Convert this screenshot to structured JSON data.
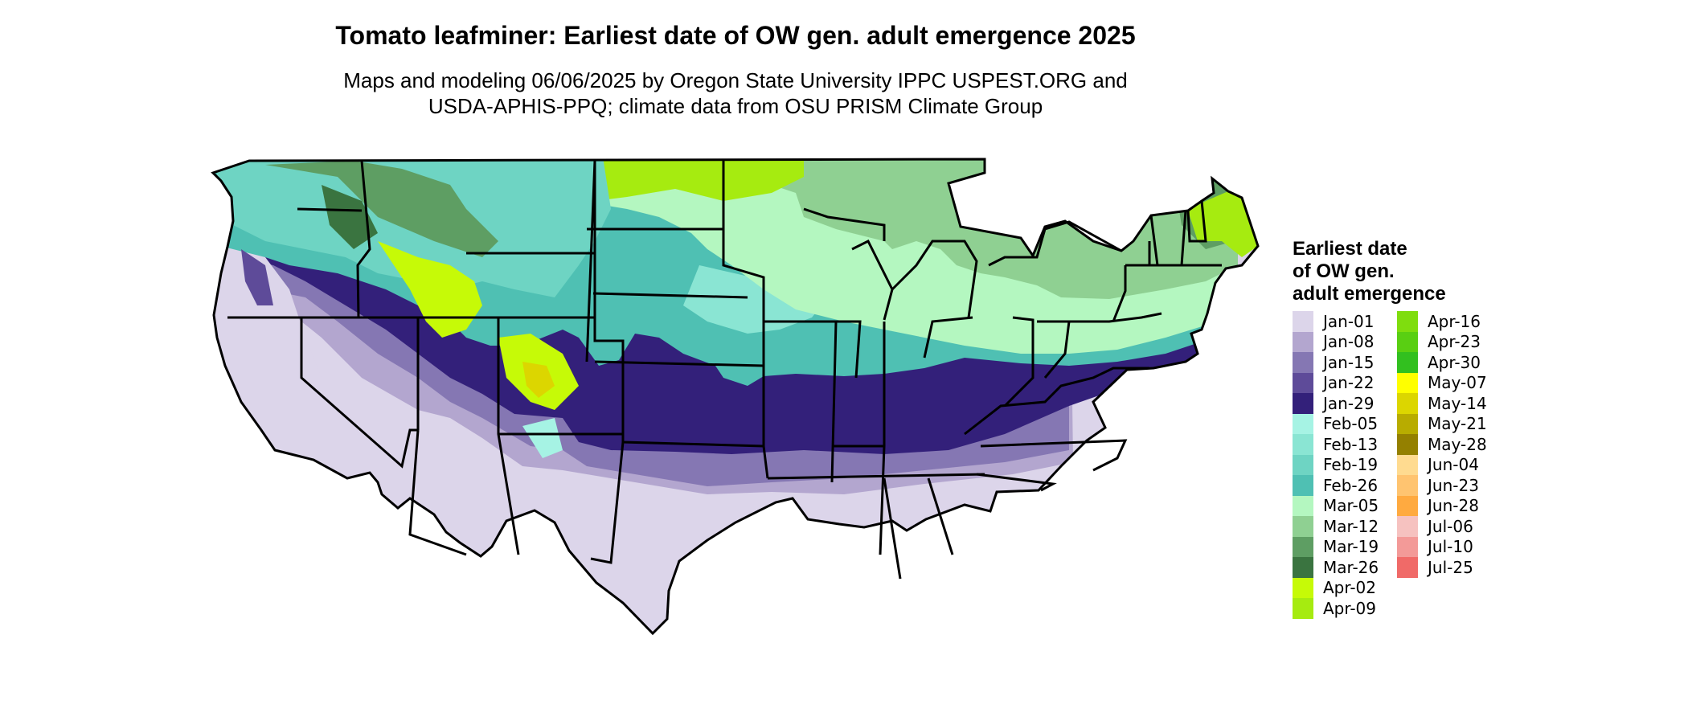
{
  "title": "Tomato leafminer: Earliest date of OW gen. adult emergence 2025",
  "subtitle": {
    "line1": "Maps and modeling 06/06/2025 by Oregon State University IPPC USPEST.ORG and",
    "line2": "USDA-APHIS-PPQ; climate data from OSU PRISM Climate Group"
  },
  "legend": {
    "title_lines": [
      "Earliest date",
      "of OW gen.",
      "adult emergence"
    ],
    "items": [
      {
        "label": "Jan-01",
        "color": "#dcd5ea"
      },
      {
        "label": "Jan-08",
        "color": "#b3a6cf"
      },
      {
        "label": "Jan-15",
        "color": "#8577b3"
      },
      {
        "label": "Jan-22",
        "color": "#5e4b99"
      },
      {
        "label": "Jan-29",
        "color": "#33207a"
      },
      {
        "label": "Feb-05",
        "color": "#a6f3e4"
      },
      {
        "label": "Feb-13",
        "color": "#8ae5d3"
      },
      {
        "label": "Feb-19",
        "color": "#6ed4c3"
      },
      {
        "label": "Feb-26",
        "color": "#4fc0b3"
      },
      {
        "label": "Mar-05",
        "color": "#b4f7c0"
      },
      {
        "label": "Mar-12",
        "color": "#8fd092"
      },
      {
        "label": "Mar-19",
        "color": "#5e9e63"
      },
      {
        "label": "Mar-26",
        "color": "#3a7440"
      },
      {
        "label": "Apr-02",
        "color": "#c6fa07"
      },
      {
        "label": "Apr-09",
        "color": "#a6eb10"
      },
      {
        "label": "Apr-16",
        "color": "#7fdd0e"
      },
      {
        "label": "Apr-23",
        "color": "#59cf12"
      },
      {
        "label": "Apr-30",
        "color": "#32c01f"
      },
      {
        "label": "May-07",
        "color": "#ffff00"
      },
      {
        "label": "May-14",
        "color": "#dcd600"
      },
      {
        "label": "May-21",
        "color": "#b8ac00"
      },
      {
        "label": "May-28",
        "color": "#948000"
      },
      {
        "label": "Jun-04",
        "color": "#ffdb90"
      },
      {
        "label": "Jun-23",
        "color": "#ffc470"
      },
      {
        "label": "Jun-28",
        "color": "#ffaa40"
      },
      {
        "label": "Jul-06",
        "color": "#f6c2c0"
      },
      {
        "label": "Jul-10",
        "color": "#f39a98"
      },
      {
        "label": "Jul-25",
        "color": "#f06a68"
      }
    ]
  }
}
